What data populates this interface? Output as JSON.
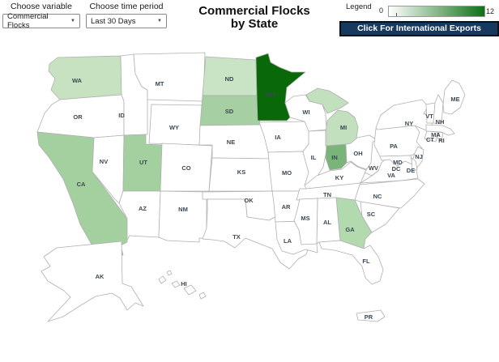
{
  "controls": {
    "caret": "▼",
    "variable": {
      "label": "Choose variable",
      "value": "Commercial Flocks"
    },
    "time_period": {
      "label": "Choose time period",
      "value": "Last 30 Days"
    }
  },
  "title": {
    "line1": "Commercial Flocks",
    "line2": "by State"
  },
  "legend": {
    "label": "Legend",
    "min": "0",
    "max": "12",
    "gradient_start": "#ffffff",
    "gradient_end": "#0f7017"
  },
  "export_button": {
    "label": "Click For International Exports",
    "bg": "#17395e"
  },
  "map": {
    "default_fill": "#ffffff",
    "border_color": "#b0b0b0",
    "label_color": "#3b4754",
    "states": [
      {
        "abbr": "WA",
        "fill": "#c6e2c1"
      },
      {
        "abbr": "OR"
      },
      {
        "abbr": "CA",
        "fill": "#a4d0a0"
      },
      {
        "abbr": "NV"
      },
      {
        "abbr": "ID"
      },
      {
        "abbr": "MT"
      },
      {
        "abbr": "WY"
      },
      {
        "abbr": "UT",
        "fill": "#a4d0a0"
      },
      {
        "abbr": "CO"
      },
      {
        "abbr": "AZ"
      },
      {
        "abbr": "NM"
      },
      {
        "abbr": "ND",
        "fill": "#c9e3c5"
      },
      {
        "abbr": "SD",
        "fill": "#a6cfa3"
      },
      {
        "abbr": "NE"
      },
      {
        "abbr": "KS"
      },
      {
        "abbr": "OK"
      },
      {
        "abbr": "TX"
      },
      {
        "abbr": "MN",
        "fill": "#096909"
      },
      {
        "abbr": "IA"
      },
      {
        "abbr": "MO"
      },
      {
        "abbr": "AR"
      },
      {
        "abbr": "LA"
      },
      {
        "abbr": "WI"
      },
      {
        "abbr": "IL"
      },
      {
        "abbr": "IN",
        "fill": "#79b479"
      },
      {
        "abbr": "MI",
        "fill": "#c2e0bd"
      },
      {
        "abbr": "OH"
      },
      {
        "abbr": "KY"
      },
      {
        "abbr": "TN"
      },
      {
        "abbr": "WV"
      },
      {
        "abbr": "VA"
      },
      {
        "abbr": "NC"
      },
      {
        "abbr": "SC"
      },
      {
        "abbr": "GA",
        "fill": "#b3d9af"
      },
      {
        "abbr": "AL"
      },
      {
        "abbr": "MS"
      },
      {
        "abbr": "FL"
      },
      {
        "abbr": "PA"
      },
      {
        "abbr": "NY"
      },
      {
        "abbr": "NJ"
      },
      {
        "abbr": "VT"
      },
      {
        "abbr": "NH"
      },
      {
        "abbr": "ME"
      },
      {
        "abbr": "MA"
      },
      {
        "abbr": "CT"
      },
      {
        "abbr": "RI"
      },
      {
        "abbr": "MD"
      },
      {
        "abbr": "DC"
      },
      {
        "abbr": "DE"
      },
      {
        "abbr": "AK"
      },
      {
        "abbr": "HI"
      },
      {
        "abbr": "PR"
      }
    ]
  }
}
